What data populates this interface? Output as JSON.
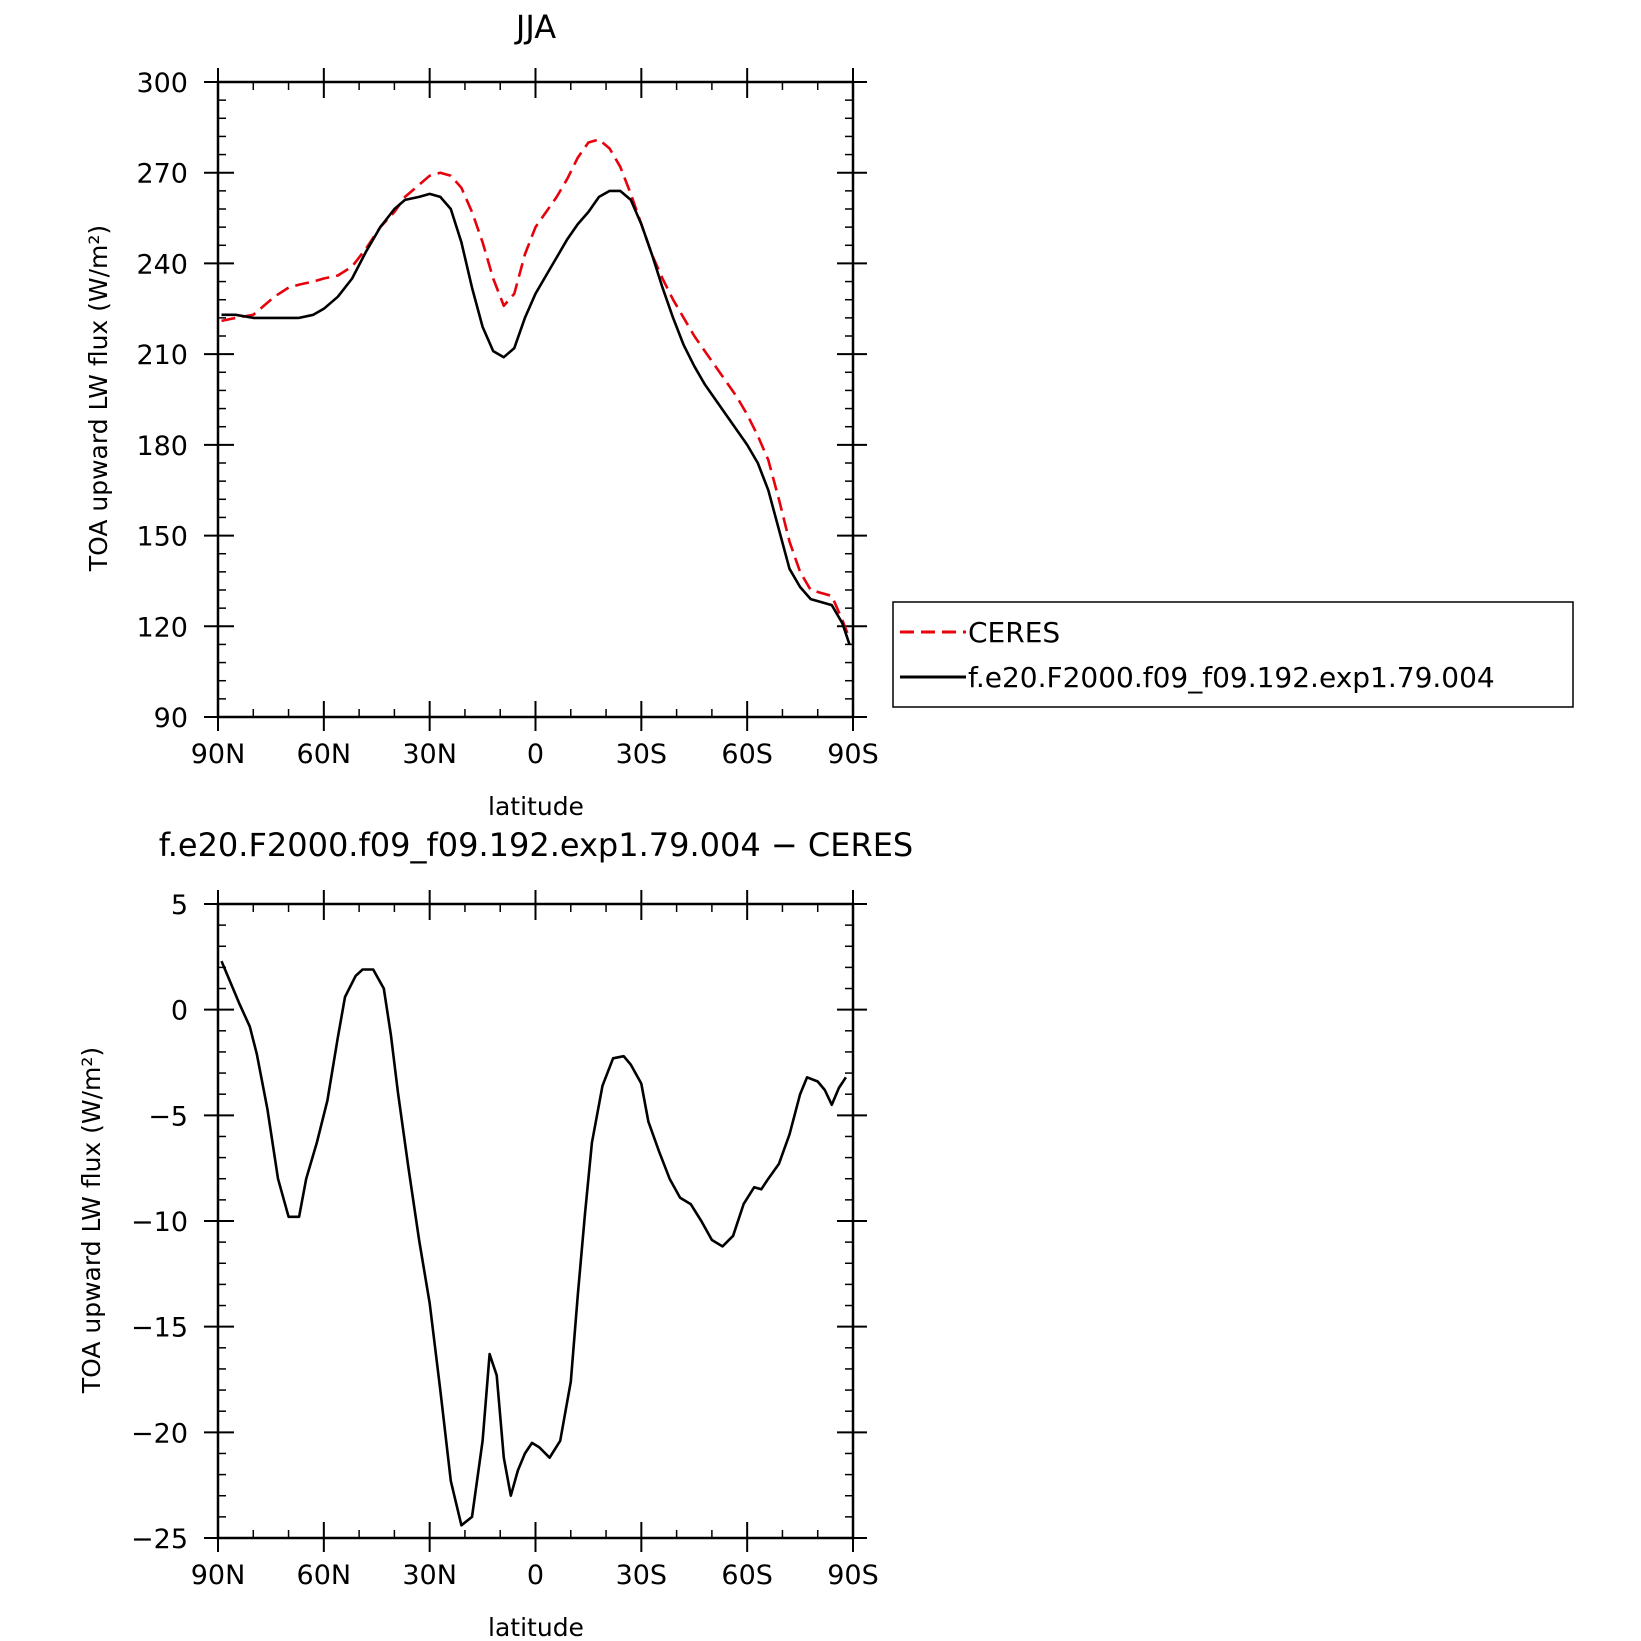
{
  "chart_data": [
    {
      "type": "line",
      "title": "JJA",
      "xlabel": "latitude",
      "ylabel": "TOA upward LW flux (W/m²)",
      "xlim": [
        -90,
        90
      ],
      "ylim": [
        90,
        300
      ],
      "x_ticks": [
        -90,
        -60,
        -30,
        0,
        30,
        60,
        90
      ],
      "x_tick_labels": [
        "90N",
        "60N",
        "30N",
        "0",
        "30S",
        "60S",
        "90S"
      ],
      "y_ticks": [
        90,
        120,
        150,
        180,
        210,
        240,
        270,
        300
      ],
      "y_tick_labels": [
        "90",
        "120",
        "150",
        "180",
        "210",
        "240",
        "270",
        "300"
      ],
      "legend_position": "right",
      "series": [
        {
          "name": "CERES",
          "color": "#e8000b",
          "dash": "dashed",
          "x": [
            -89,
            -85,
            -80,
            -77,
            -74,
            -70,
            -67,
            -63,
            -60,
            -56,
            -52,
            -48,
            -44,
            -40,
            -37,
            -33,
            -30,
            -27,
            -24,
            -21,
            -18,
            -15,
            -12,
            -9,
            -6,
            -3,
            0,
            3,
            6,
            9,
            12,
            15,
            18,
            21,
            24,
            27,
            30,
            33,
            36,
            39,
            42,
            45,
            48,
            51,
            54,
            57,
            60,
            63,
            66,
            69,
            72,
            75,
            78,
            81,
            84,
            87,
            89
          ],
          "y": [
            221,
            222,
            223,
            226,
            229,
            232,
            233,
            234,
            235,
            236,
            239,
            245,
            252,
            257,
            262,
            266,
            269,
            270,
            269,
            265,
            257,
            247,
            235,
            226,
            230,
            243,
            252,
            257,
            262,
            268,
            275,
            280,
            281,
            278,
            272,
            263,
            253,
            243,
            235,
            228,
            222,
            216,
            211,
            206,
            201,
            196,
            190,
            183,
            175,
            162,
            148,
            138,
            132,
            131,
            130,
            122,
            116
          ]
        },
        {
          "name": "f.e20.F2000.f09_f09.192.exp1.79.004",
          "color": "#000000",
          "dash": "solid",
          "x": [
            -89,
            -85,
            -80,
            -77,
            -74,
            -70,
            -67,
            -63,
            -60,
            -56,
            -52,
            -48,
            -44,
            -40,
            -37,
            -33,
            -30,
            -27,
            -24,
            -21,
            -18,
            -15,
            -12,
            -9,
            -6,
            -3,
            0,
            3,
            6,
            9,
            12,
            15,
            18,
            21,
            24,
            27,
            30,
            33,
            36,
            39,
            42,
            45,
            48,
            51,
            54,
            57,
            60,
            63,
            66,
            69,
            72,
            75,
            78,
            81,
            84,
            87,
            89
          ],
          "y": [
            223,
            223,
            222,
            222,
            222,
            222,
            222,
            223,
            225,
            229,
            235,
            244,
            252,
            258,
            261,
            262,
            263,
            262,
            258,
            247,
            232,
            219,
            211,
            209,
            212,
            222,
            230,
            236,
            242,
            248,
            253,
            257,
            262,
            264,
            264,
            261,
            253,
            243,
            232,
            222,
            213,
            206,
            200,
            195,
            190,
            185,
            180,
            174,
            165,
            152,
            139,
            133,
            129,
            128,
            127,
            121,
            114
          ]
        }
      ]
    },
    {
      "type": "line",
      "title": "f.e20.F2000.f09_f09.192.exp1.79.004 − CERES",
      "xlabel": "latitude",
      "ylabel": "TOA upward LW flux (W/m²)",
      "xlim": [
        -90,
        90
      ],
      "ylim": [
        -25,
        5
      ],
      "x_ticks": [
        -90,
        -60,
        -30,
        0,
        30,
        60,
        90
      ],
      "x_tick_labels": [
        "90N",
        "60N",
        "30N",
        "0",
        "30S",
        "60S",
        "90S"
      ],
      "y_ticks": [
        -25,
        -20,
        -15,
        -10,
        -5,
        0,
        5
      ],
      "y_tick_labels": [
        "−25",
        "−20",
        "−15",
        "−10",
        "−5",
        "0",
        "5"
      ],
      "series": [
        {
          "color": "#000000",
          "dash": "solid",
          "x": [
            -89,
            -87,
            -84,
            -81,
            -79,
            -76,
            -73,
            -70,
            -67,
            -65,
            -62,
            -59,
            -56,
            -54,
            -51,
            -49,
            -46,
            -43,
            -41,
            -39,
            -36,
            -33,
            -30,
            -27,
            -24,
            -21,
            -18,
            -15,
            -13,
            -11,
            -9,
            -7,
            -5,
            -3,
            -1,
            1,
            4,
            7,
            10,
            12,
            14,
            16,
            19,
            22,
            25,
            27,
            30,
            32,
            35,
            38,
            41,
            44,
            47,
            50,
            53,
            56,
            59,
            62,
            64,
            66,
            69,
            72,
            75,
            77,
            80,
            82,
            84,
            86,
            88
          ],
          "y": [
            2.3,
            1.5,
            0.3,
            -0.8,
            -2.1,
            -4.7,
            -8.0,
            -9.8,
            -9.8,
            -8.0,
            -6.3,
            -4.3,
            -1.3,
            0.6,
            1.6,
            1.9,
            1.9,
            1.0,
            -1.2,
            -3.9,
            -7.5,
            -10.9,
            -13.9,
            -18.0,
            -22.3,
            -24.4,
            -24.0,
            -20.4,
            -16.3,
            -17.3,
            -21.2,
            -23.0,
            -21.8,
            -21.0,
            -20.5,
            -20.7,
            -21.2,
            -20.4,
            -17.6,
            -13.5,
            -9.7,
            -6.3,
            -3.6,
            -2.3,
            -2.2,
            -2.6,
            -3.5,
            -5.3,
            -6.7,
            -8.0,
            -8.9,
            -9.2,
            -10.0,
            -10.9,
            -11.2,
            -10.7,
            -9.2,
            -8.4,
            -8.5,
            -8.0,
            -7.3,
            -5.9,
            -4.0,
            -3.2,
            -3.4,
            -3.8,
            -4.5,
            -3.7,
            -3.2
          ]
        }
      ]
    }
  ]
}
